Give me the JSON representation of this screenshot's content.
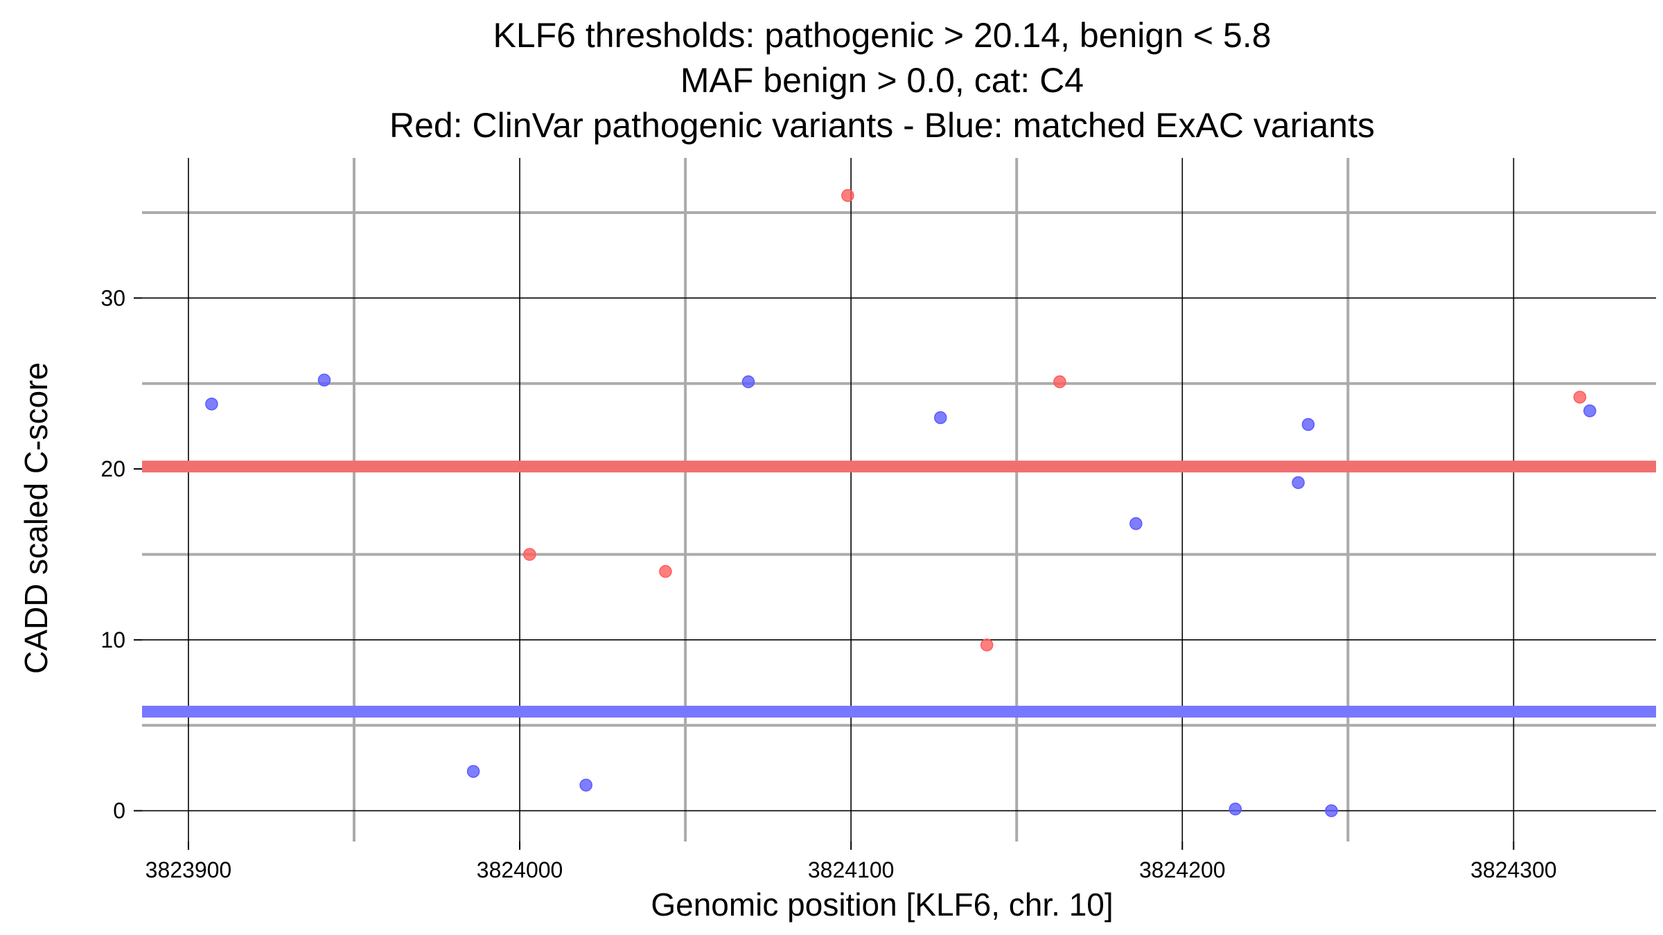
{
  "chart_data": {
    "type": "scatter",
    "title_lines": [
      "KLF6 thresholds: pathogenic > 20.14, benign < 5.8",
      "MAF benign > 0.0, cat: C4",
      "Red: ClinVar pathogenic variants - Blue: matched ExAC variants"
    ],
    "xlabel": "Genomic position [KLF6, chr. 10]",
    "ylabel": "CADD scaled C-score",
    "xlim": [
      3823886,
      3824343
    ],
    "ylim": [
      -1.8,
      38.2
    ],
    "x_major_ticks": [
      3823900,
      3824000,
      3824100,
      3824200,
      3824300
    ],
    "x_tick_labels": [
      "3823900",
      "3824000",
      "3824100",
      "3824200",
      "3824300"
    ],
    "x_minor_gridlines": [
      3823950,
      3824050,
      3824150,
      3824250
    ],
    "y_major_ticks": [
      0,
      10,
      20,
      30
    ],
    "y_tick_labels": [
      "0",
      "10",
      "20",
      "30"
    ],
    "y_minor_gridlines": [
      5,
      15,
      25,
      35
    ],
    "grid": true,
    "thresholds": [
      {
        "label": "pathogenic",
        "value": 20.14,
        "color": "#f07070"
      },
      {
        "label": "benign",
        "value": 5.8,
        "color": "#7777ff"
      }
    ],
    "series": [
      {
        "color": "#ff5a5a",
        "points": [
          {
            "x": 3824003,
            "y": 15.0
          },
          {
            "x": 3824044,
            "y": 14.0
          },
          {
            "x": 3824099,
            "y": 36.0
          },
          {
            "x": 3824141,
            "y": 9.7
          },
          {
            "x": 3824163,
            "y": 25.1
          },
          {
            "x": 3824320,
            "y": 24.2
          }
        ]
      },
      {
        "color": "#5a5aff",
        "points": [
          {
            "x": 3823907,
            "y": 23.8
          },
          {
            "x": 3823941,
            "y": 25.2
          },
          {
            "x": 3823986,
            "y": 2.3
          },
          {
            "x": 3824020,
            "y": 1.5
          },
          {
            "x": 3824069,
            "y": 25.1
          },
          {
            "x": 3824127,
            "y": 23.0
          },
          {
            "x": 3824186,
            "y": 16.8
          },
          {
            "x": 3824216,
            "y": 0.1
          },
          {
            "x": 3824235,
            "y": 19.2
          },
          {
            "x": 3824238,
            "y": 22.6
          },
          {
            "x": 3824245,
            "y": 0.0
          },
          {
            "x": 3824323,
            "y": 23.4
          }
        ]
      }
    ]
  }
}
